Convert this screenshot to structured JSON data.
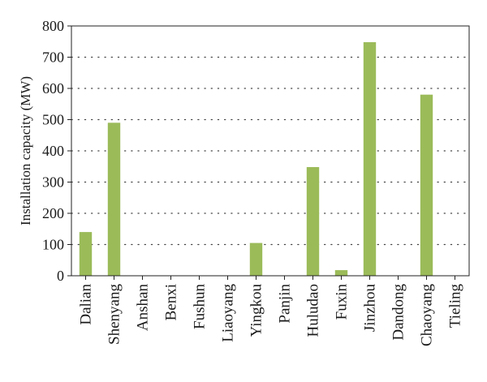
{
  "chart_data": {
    "type": "bar",
    "title": "",
    "xlabel": "",
    "ylabel": "Installation capacity (MW)",
    "categories": [
      "Dalian",
      "Shenyang",
      "Anshan",
      "Benxi",
      "Fushun",
      "Liaoyang",
      "Yingkou",
      "Panjin",
      "Huludao",
      "Fuxin",
      "Jinzhou",
      "Dandong",
      "Chaoyang",
      "Tieling"
    ],
    "values": [
      140,
      490,
      0,
      0,
      0,
      0,
      105,
      0,
      348,
      18,
      748,
      0,
      580,
      0
    ],
    "ylim": [
      0,
      800
    ],
    "yticks": [
      0,
      100,
      200,
      300,
      400,
      500,
      600,
      700,
      800
    ],
    "grid": "horizontal-dotted",
    "legend": "none",
    "colors": {
      "bar": "#9bbb59",
      "grid": "#444444",
      "axis": "#222222"
    }
  }
}
